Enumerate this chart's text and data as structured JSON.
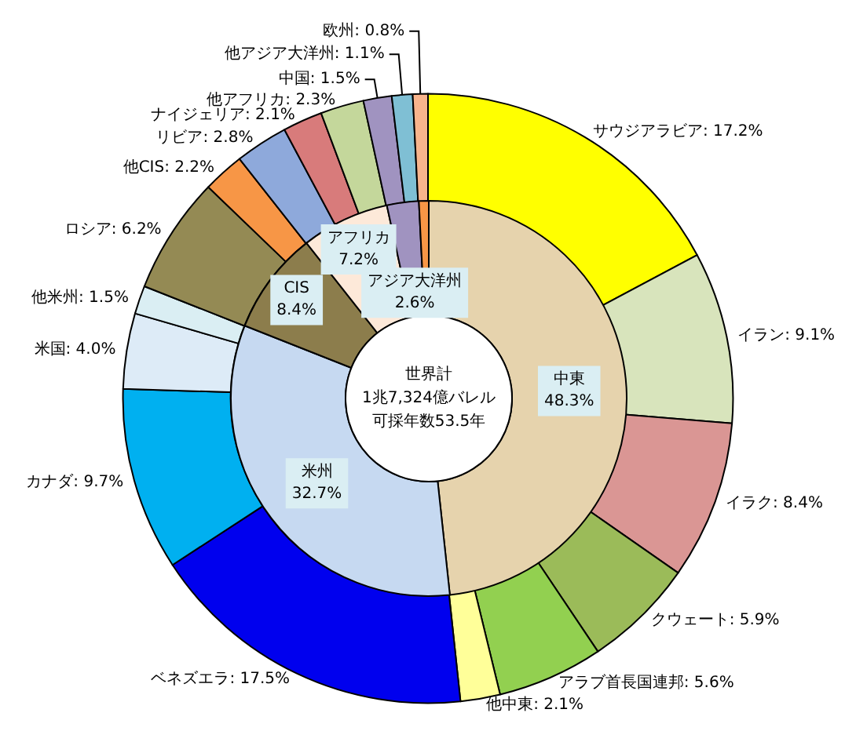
{
  "chart_data": [
    {
      "type": "donut",
      "data_labels": true,
      "categories": [
        "サウジアラビア",
        "イラン",
        "イラク",
        "クウェート",
        "アラブ首長国連邦",
        "他中東",
        "ベネズエラ",
        "カナダ",
        "米国",
        "他米州",
        "ロシア",
        "他CIS",
        "リビア",
        "ナイジェリア",
        "他アフリカ",
        "中国",
        "他アジア大洋州",
        "欧州"
      ],
      "values": [
        17.2,
        9.1,
        8.4,
        5.9,
        5.6,
        2.1,
        17.5,
        9.7,
        4.0,
        1.5,
        6.2,
        2.2,
        2.8,
        2.1,
        2.3,
        1.5,
        1.1,
        0.8
      ],
      "value_labels": [
        ": 17.2%",
        ": 9.1%",
        ": 8.4%",
        ": 5.9%",
        ": 5.6%",
        ": 2.1%",
        ": 17.5%",
        ": 9.7%",
        ": 4.0%",
        ": 1.5%",
        ": 6.2%",
        ": 2.2%",
        ": 2.8%",
        ": 2.1%",
        ": 2.3%",
        ": 1.5%",
        ": 1.1%",
        ": 0.8%"
      ],
      "colors": [
        "#ffff00",
        "#d8e4bc",
        "#da9694",
        "#9bbb59",
        "#92d050",
        "#ffff99",
        "#0000ee",
        "#00b0f0",
        "#ddebf7",
        "#daeef3",
        "#948a54",
        "#f79646",
        "#8ea9db",
        "#d87b7b",
        "#c4d79b",
        "#a093c0",
        "#7fbfd4",
        "#f8b48c"
      ]
    },
    {
      "type": "donut",
      "data_labels": true,
      "annotations": [
        "世界計",
        "1兆7,324億バレル",
        "可採年数53.5年"
      ],
      "categories": [
        "中東",
        "米州",
        "CIS",
        "アフリカ",
        "アジア大洋州",
        null
      ],
      "values": [
        48.3,
        32.7,
        8.4,
        7.2,
        2.6,
        0.8
      ],
      "value_labels": [
        "48.3%",
        "32.7%",
        "8.4%",
        "7.2%",
        "2.6%",
        null
      ],
      "colors": [
        "#e6d3ad",
        "#c6d9f1",
        "#8c7d4c",
        "#fde9d9",
        "#a093c0",
        "#f79646"
      ]
    }
  ]
}
